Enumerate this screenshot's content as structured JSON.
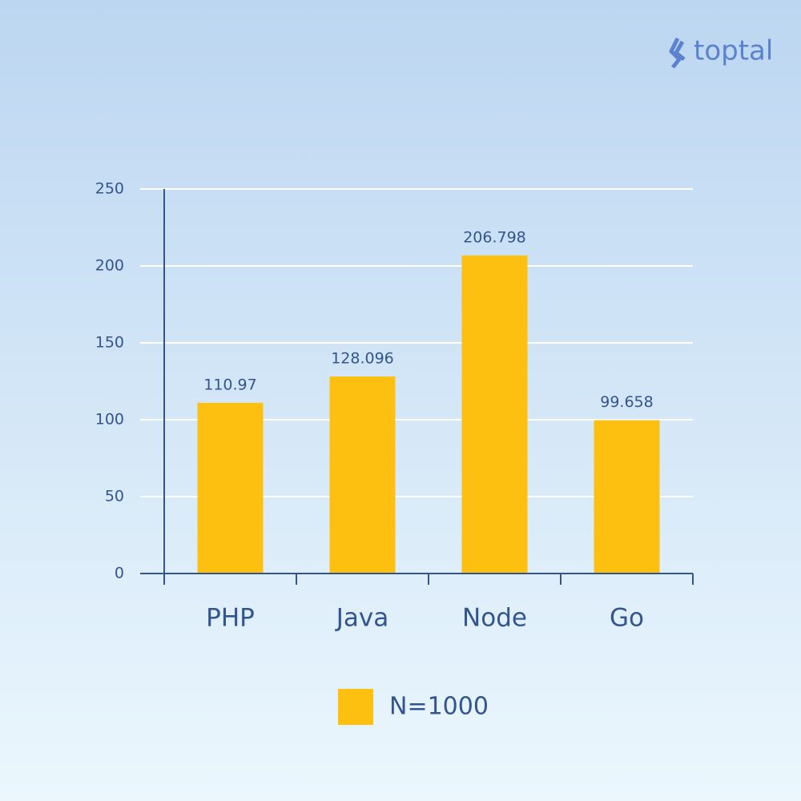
{
  "logo": "toptal",
  "chart_data": {
    "type": "bar",
    "categories": [
      "PHP",
      "Java",
      "Node",
      "Go"
    ],
    "series": [
      {
        "name": "N=1000",
        "color": "#fdc010",
        "values": [
          110.97,
          128.096,
          206.798,
          99.658
        ]
      }
    ],
    "ylim": [
      0,
      250
    ],
    "yticks": [
      0,
      50,
      100,
      150,
      200,
      250
    ],
    "grid": true,
    "legend": "bottom"
  }
}
